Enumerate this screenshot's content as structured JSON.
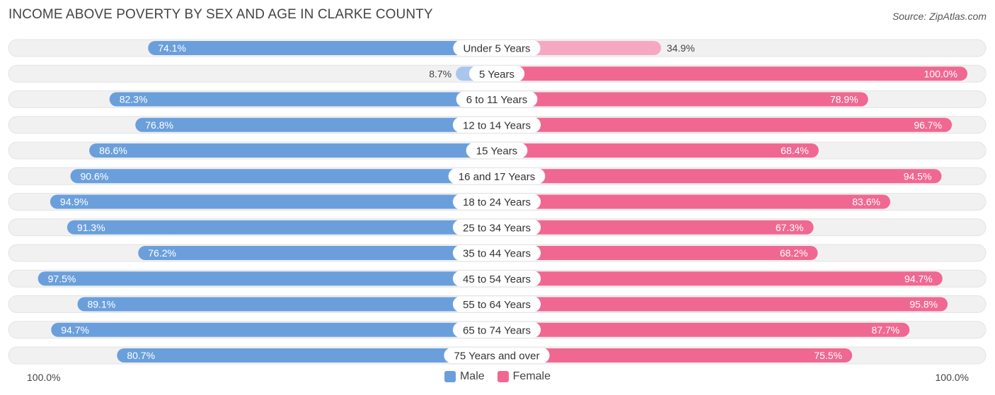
{
  "header": {
    "title": "INCOME ABOVE POVERTY BY SEX AND AGE IN CLARKE COUNTY",
    "source": "Source: ZipAtlas.com"
  },
  "axis": {
    "left_label": "100.0%",
    "right_label": "100.0%"
  },
  "legend": {
    "male_label": "Male",
    "female_label": "Female"
  },
  "colors": {
    "male": "#6a9fdc",
    "male_light": "#a9c7ec",
    "female": "#f06892",
    "female_light": "#f6a8c2",
    "track": "#f1f1f1"
  },
  "chart_data": {
    "type": "bar",
    "orientation": "horizontal-diverging",
    "title": "INCOME ABOVE POVERTY BY SEX AND AGE IN CLARKE COUNTY",
    "xlim": [
      0,
      100
    ],
    "categories": [
      "Under 5 Years",
      "5 Years",
      "6 to 11 Years",
      "12 to 14 Years",
      "15 Years",
      "16 and 17 Years",
      "18 to 24 Years",
      "25 to 34 Years",
      "35 to 44 Years",
      "45 to 54 Years",
      "55 to 64 Years",
      "65 to 74 Years",
      "75 Years and over"
    ],
    "series": [
      {
        "name": "Male",
        "values": [
          74.1,
          8.7,
          82.3,
          76.8,
          86.6,
          90.6,
          94.9,
          91.3,
          76.2,
          97.5,
          89.1,
          94.7,
          80.7
        ]
      },
      {
        "name": "Female",
        "values": [
          34.9,
          100.0,
          78.9,
          96.7,
          68.4,
          94.5,
          83.6,
          67.3,
          68.2,
          94.7,
          95.8,
          87.7,
          75.5
        ]
      }
    ],
    "value_labels": {
      "male": [
        "74.1%",
        "8.7%",
        "82.3%",
        "76.8%",
        "86.6%",
        "90.6%",
        "94.9%",
        "91.3%",
        "76.2%",
        "97.5%",
        "89.1%",
        "94.7%",
        "80.7%"
      ],
      "female": [
        "34.9%",
        "100.0%",
        "78.9%",
        "96.7%",
        "68.4%",
        "94.5%",
        "83.6%",
        "67.3%",
        "68.2%",
        "94.7%",
        "95.8%",
        "87.7%",
        "75.5%"
      ]
    }
  }
}
